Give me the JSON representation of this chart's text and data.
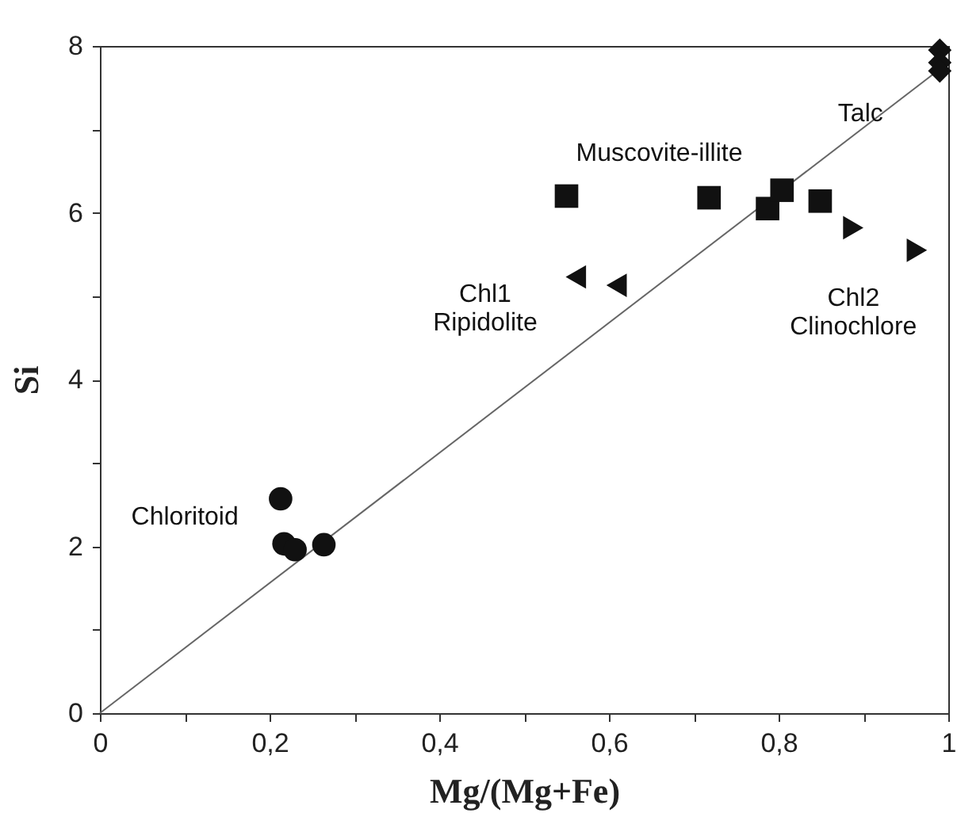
{
  "chart_data": {
    "type": "scatter",
    "xlabel": "Mg/(Mg+Fe)",
    "ylabel": "Si",
    "xlim": [
      0,
      1
    ],
    "ylim": [
      0,
      8
    ],
    "xticks": [
      0,
      {
        "value": 0.1,
        "label": null
      },
      {
        "value": 0.2,
        "label": "0,2"
      },
      {
        "value": 0.3,
        "label": null
      },
      {
        "value": 0.4,
        "label": "0,4"
      },
      {
        "value": 0.5,
        "label": null
      },
      {
        "value": 0.6,
        "label": "0,6"
      },
      {
        "value": 0.7,
        "label": null
      },
      {
        "value": 0.8,
        "label": "0,8"
      },
      {
        "value": 0.9,
        "label": null
      },
      1
    ],
    "yticks": [
      0,
      {
        "value": 1,
        "label": null
      },
      2,
      {
        "value": 3,
        "label": null
      },
      4,
      {
        "value": 5,
        "label": null
      },
      6,
      {
        "value": 7,
        "label": null
      },
      8
    ],
    "grid": false,
    "series": [
      {
        "type": "line",
        "color": "#666666",
        "x": [
          0,
          1
        ],
        "values": [
          0,
          7.8
        ],
        "marker": "none",
        "line_style": "solid"
      },
      {
        "name": "Chloritoid",
        "color": "#111111",
        "marker": "circle",
        "x": [
          0.213,
          0.217,
          0.23,
          0.264
        ],
        "values": [
          2.57,
          2.03,
          1.96,
          2.02
        ]
      },
      {
        "name": "Muscovite-illite",
        "color": "#111111",
        "marker": "square",
        "x": [
          0.55,
          0.718,
          0.787,
          0.804,
          0.849
        ],
        "values": [
          6.2,
          6.18,
          6.05,
          6.27,
          6.14
        ]
      },
      {
        "name": "Chl1\nRipidolite",
        "color": "#111111",
        "marker": "triangle-left",
        "x": [
          0.561,
          0.609
        ],
        "values": [
          5.23,
          5.13
        ]
      },
      {
        "name": "Chl2\nClinochlore",
        "color": "#111111",
        "marker": "triangle-right",
        "x": [
          0.888,
          0.963
        ],
        "values": [
          5.82,
          5.55
        ]
      },
      {
        "name": "Talc",
        "color": "#111111",
        "marker": "diamond",
        "x": [
          0.99,
          0.99,
          0.99
        ],
        "values": [
          7.95,
          7.8,
          7.7
        ]
      }
    ]
  }
}
